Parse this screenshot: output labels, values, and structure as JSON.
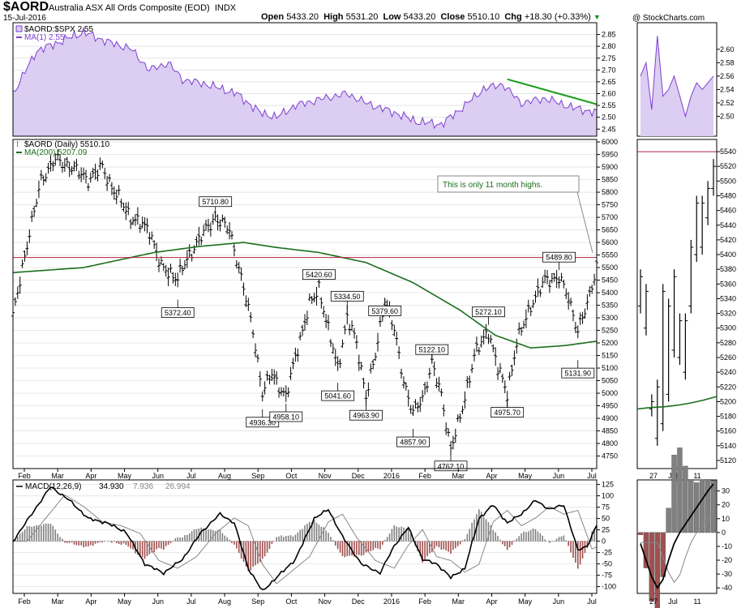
{
  "header": {
    "symbol": "$AORD",
    "name": "Australia ASX All Ords Composite (EOD)",
    "exchange": "INDX",
    "date": "15-Jul-2016",
    "open_label": "Open",
    "open": "5433.20",
    "high_label": "High",
    "high": "5531.20",
    "low_label": "Low",
    "low": "5433.20",
    "close_label": "Close",
    "close": "5510.10",
    "chg_label": "Chg",
    "chg": "+18.30 (+0.33%)",
    "credit": "@ StockCharts.com"
  },
  "colors": {
    "ratio_line": "#7e3fd0",
    "ratio_fill": "#dccdf2",
    "ma200": "#1a6e1a",
    "hline": "#b02040",
    "trend": "#1a9e1a",
    "macd_line": "#000000",
    "signal_line": "#888888",
    "hist_pos": "#808080",
    "hist_neg": "#a05050"
  },
  "chart_data": [
    {
      "type": "area",
      "panel": "ratio",
      "legend": [
        "$AORD:$SPX 2.55",
        "MA(1) 2.55"
      ],
      "ylim": [
        2.42,
        2.9
      ],
      "y_ticks": [
        "2.85",
        "2.80",
        "2.75",
        "2.70",
        "2.65",
        "2.60",
        "2.55",
        "2.50",
        "2.45"
      ],
      "anchors": [
        [
          0,
          2.6
        ],
        [
          10,
          2.78
        ],
        [
          20,
          2.82
        ],
        [
          30,
          2.86
        ],
        [
          40,
          2.82
        ],
        [
          50,
          2.79
        ],
        [
          58,
          2.7
        ],
        [
          66,
          2.73
        ],
        [
          72,
          2.66
        ],
        [
          82,
          2.64
        ],
        [
          95,
          2.6
        ],
        [
          105,
          2.52
        ],
        [
          112,
          2.5
        ],
        [
          120,
          2.55
        ],
        [
          132,
          2.58
        ],
        [
          142,
          2.6
        ],
        [
          150,
          2.56
        ],
        [
          162,
          2.52
        ],
        [
          172,
          2.48
        ],
        [
          182,
          2.47
        ],
        [
          192,
          2.55
        ],
        [
          200,
          2.62
        ],
        [
          208,
          2.64
        ],
        [
          216,
          2.56
        ],
        [
          226,
          2.58
        ],
        [
          238,
          2.54
        ],
        [
          248,
          2.52
        ]
      ],
      "trendline": {
        "from": [
          210,
          2.661
        ],
        "to": [
          248,
          2.555
        ]
      },
      "zoom": [
        2.56,
        2.58,
        2.51,
        2.62,
        2.53,
        2.54,
        2.56,
        2.53,
        2.5,
        2.53,
        2.55,
        2.54,
        2.55,
        2.56
      ]
    },
    {
      "type": "ohlc",
      "panel": "price",
      "legend": [
        "$AORD (Daily) 5510.10",
        "MA(200) 5207.09"
      ],
      "ylim": [
        4700,
        6010
      ],
      "y_ticks": [
        "6000",
        "5950",
        "5900",
        "5850",
        "5800",
        "5750",
        "5700",
        "5650",
        "5600",
        "5550",
        "5500",
        "5450",
        "5400",
        "5350",
        "5300",
        "5250",
        "5200",
        "5150",
        "5100",
        "5050",
        "5000",
        "4950",
        "4900",
        "4850",
        "4800",
        "4750"
      ],
      "x_ticks": [
        "Feb",
        "Mar",
        "Apr",
        "May",
        "Jun",
        "Jul",
        "Aug",
        "Sep",
        "Oct",
        "Nov",
        "Dec",
        "2016",
        "Feb",
        "Mar",
        "Apr",
        "May",
        "Jun",
        "Jul"
      ],
      "hline": 5540,
      "anchors": [
        [
          0,
          5300
        ],
        [
          5,
          5550
        ],
        [
          12,
          5850
        ],
        [
          18,
          5930
        ],
        [
          25,
          5900
        ],
        [
          32,
          5850
        ],
        [
          38,
          5900
        ],
        [
          42,
          5820
        ],
        [
          50,
          5700
        ],
        [
          58,
          5650
        ],
        [
          63,
          5500
        ],
        [
          70,
          5460
        ],
        [
          78,
          5600
        ],
        [
          86,
          5700
        ],
        [
          92,
          5650
        ],
        [
          96,
          5500
        ],
        [
          102,
          5250
        ],
        [
          106,
          5000
        ],
        [
          110,
          5080
        ],
        [
          116,
          4980
        ],
        [
          120,
          5150
        ],
        [
          126,
          5350
        ],
        [
          130,
          5420
        ],
        [
          134,
          5250
        ],
        [
          138,
          5100
        ],
        [
          142,
          5300
        ],
        [
          146,
          5200
        ],
        [
          150,
          4990
        ],
        [
          154,
          5150
        ],
        [
          158,
          5380
        ],
        [
          162,
          5250
        ],
        [
          166,
          5050
        ],
        [
          170,
          4920
        ],
        [
          174,
          4980
        ],
        [
          178,
          5120
        ],
        [
          182,
          4990
        ],
        [
          186,
          4780
        ],
        [
          190,
          4900
        ],
        [
          196,
          5150
        ],
        [
          202,
          5250
        ],
        [
          206,
          5100
        ],
        [
          210,
          5000
        ],
        [
          214,
          5200
        ],
        [
          220,
          5350
        ],
        [
          226,
          5450
        ],
        [
          232,
          5460
        ],
        [
          236,
          5380
        ],
        [
          240,
          5250
        ],
        [
          244,
          5350
        ],
        [
          248,
          5510
        ]
      ],
      "ma200_anchors": [
        [
          0,
          5480
        ],
        [
          30,
          5500
        ],
        [
          60,
          5560
        ],
        [
          80,
          5585
        ],
        [
          98,
          5600
        ],
        [
          112,
          5580
        ],
        [
          130,
          5560
        ],
        [
          150,
          5520
        ],
        [
          170,
          5440
        ],
        [
          190,
          5330
        ],
        [
          205,
          5230
        ],
        [
          220,
          5180
        ],
        [
          235,
          5190
        ],
        [
          248,
          5207
        ]
      ],
      "zoom_ma": [
        5190,
        5192,
        5193,
        5195,
        5198,
        5202,
        5207
      ],
      "zoom": [
        [
          5320,
          5380
        ],
        [
          5290,
          5360
        ],
        [
          5180,
          5210
        ],
        [
          5140,
          5230
        ],
        [
          5160,
          5360
        ],
        [
          5200,
          5340
        ],
        [
          5260,
          5380
        ],
        [
          5250,
          5320
        ],
        [
          5230,
          5320
        ],
        [
          5320,
          5420
        ],
        [
          5390,
          5480
        ],
        [
          5400,
          5480
        ],
        [
          5440,
          5500
        ],
        [
          5480,
          5530
        ]
      ],
      "zoom_y_ticks": [
        "5540",
        "5520",
        "5500",
        "5480",
        "5460",
        "5440",
        "5420",
        "5400",
        "5380",
        "5360",
        "5340",
        "5320",
        "5300",
        "5280",
        "5260",
        "5240",
        "5220",
        "5200",
        "5180",
        "5160",
        "5140",
        "5120"
      ],
      "zoom_x_ticks": [
        "27",
        "Jul",
        "11"
      ],
      "annotations": [
        {
          "x": 86,
          "y": 5710.8,
          "text": "5710.80"
        },
        {
          "x": 70,
          "y": 5372.4,
          "text": "5372.40"
        },
        {
          "x": 106,
          "y": 4936.3,
          "text": "4936.30"
        },
        {
          "x": 116,
          "y": 4958.1,
          "text": "4958.10"
        },
        {
          "x": 130,
          "y": 5420.6,
          "text": "5420.60"
        },
        {
          "x": 142,
          "y": 5334.5,
          "text": "5334.50"
        },
        {
          "x": 138,
          "y": 5041.6,
          "text": "5041.60"
        },
        {
          "x": 158,
          "y": 5379.6,
          "text": "5379.60"
        },
        {
          "x": 150,
          "y": 4963.9,
          "text": "4963.90"
        },
        {
          "x": 178,
          "y": 5122.1,
          "text": "5122.10"
        },
        {
          "x": 170,
          "y": 4857.9,
          "text": "4857.90"
        },
        {
          "x": 186,
          "y": 4762.1,
          "text": "4762.10"
        },
        {
          "x": 202,
          "y": 5272.1,
          "text": "5272.10"
        },
        {
          "x": 210,
          "y": 4975.7,
          "text": "4975.70"
        },
        {
          "x": 232,
          "y": 5489.8,
          "text": "5489.80"
        },
        {
          "x": 240,
          "y": 5131.9,
          "text": "5131.90"
        }
      ],
      "callout": "This is only 11 month highs."
    },
    {
      "type": "line",
      "panel": "macd",
      "legend": [
        "MACD(12,26,9)",
        "34.930",
        "7.936",
        "26.994"
      ],
      "ylim": [
        -115,
        135
      ],
      "y_ticks": [
        "125",
        "100",
        "75",
        "50",
        "25",
        "0",
        "-25",
        "-50",
        "-75",
        "-100"
      ],
      "anchors": [
        [
          0,
          0
        ],
        [
          8,
          60
        ],
        [
          16,
          120
        ],
        [
          24,
          90
        ],
        [
          32,
          50
        ],
        [
          40,
          40
        ],
        [
          48,
          20
        ],
        [
          56,
          -50
        ],
        [
          64,
          -70
        ],
        [
          72,
          -40
        ],
        [
          80,
          20
        ],
        [
          88,
          60
        ],
        [
          94,
          40
        ],
        [
          100,
          -60
        ],
        [
          106,
          -110
        ],
        [
          112,
          -80
        ],
        [
          120,
          -40
        ],
        [
          128,
          50
        ],
        [
          134,
          70
        ],
        [
          140,
          10
        ],
        [
          148,
          -50
        ],
        [
          156,
          -70
        ],
        [
          162,
          -10
        ],
        [
          168,
          30
        ],
        [
          174,
          -40
        ],
        [
          180,
          -50
        ],
        [
          186,
          -80
        ],
        [
          192,
          -60
        ],
        [
          198,
          50
        ],
        [
          204,
          80
        ],
        [
          210,
          40
        ],
        [
          216,
          60
        ],
        [
          222,
          90
        ],
        [
          228,
          70
        ],
        [
          234,
          80
        ],
        [
          240,
          -20
        ],
        [
          244,
          -10
        ],
        [
          248,
          35
        ]
      ],
      "signal_lag": 3,
      "zoom_ylim": [
        -44,
        38
      ],
      "zoom_y_ticks": [
        "30",
        "20",
        "10",
        "0",
        "-10",
        "-20",
        "-30",
        "-40"
      ],
      "zoom": [
        -8,
        -20,
        -32,
        -40,
        -34,
        -20,
        -8,
        0,
        6,
        12,
        18,
        24,
        30,
        35
      ],
      "zoom_x_ticks": [
        "27",
        "Jul",
        "11"
      ]
    }
  ]
}
